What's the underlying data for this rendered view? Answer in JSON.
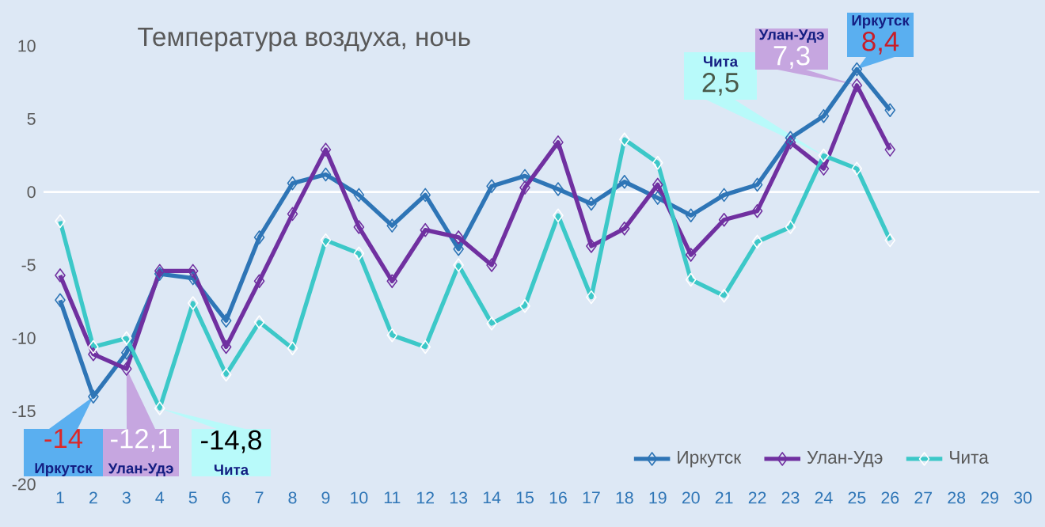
{
  "chart_data": {
    "type": "line",
    "title": "Температура воздуха, ночь",
    "categories": [
      "1",
      "2",
      "3",
      "4",
      "5",
      "6",
      "7",
      "8",
      "9",
      "10",
      "11",
      "12",
      "13",
      "14",
      "15",
      "16",
      "17",
      "18",
      "19",
      "20",
      "21",
      "22",
      "23",
      "24",
      "25",
      "26",
      "27",
      "28",
      "29",
      "30"
    ],
    "series": [
      {
        "name": "Иркутск",
        "color": "#2e75b6",
        "values": [
          -7.4,
          -14,
          -11,
          -5.6,
          -5.9,
          -8.8,
          -3.1,
          0.6,
          1.2,
          -0.2,
          -2.3,
          -0.2,
          -3.9,
          0.4,
          1.1,
          0.2,
          -0.8,
          0.7,
          -0.4,
          -1.6,
          -0.2,
          0.5,
          3.7,
          5.2,
          8.4,
          5.6,
          null,
          null,
          null,
          null
        ]
      },
      {
        "name": "Улан-Удэ",
        "color": "#7030a0",
        "values": [
          -5.7,
          -11.1,
          -12.1,
          -5.4,
          -5.4,
          -10.6,
          -6.1,
          -1.5,
          2.9,
          -2.4,
          -6.1,
          -2.6,
          -3.1,
          -5.0,
          0.3,
          3.4,
          -3.7,
          -2.5,
          0.5,
          -4.3,
          -1.9,
          -1.3,
          3.4,
          1.6,
          7.3,
          2.9,
          null,
          null,
          null,
          null
        ]
      },
      {
        "name": "Чита",
        "color": "#3cc8c8",
        "values": [
          -2.0,
          -10.6,
          -10.0,
          -14.8,
          -7.6,
          -12.5,
          -8.9,
          -10.7,
          -3.3,
          -4.2,
          -9.8,
          -10.6,
          -5.0,
          -9.0,
          -7.8,
          -1.6,
          -7.2,
          3.6,
          2.0,
          -6.0,
          -7.1,
          -3.4,
          -2.4,
          2.5,
          1.6,
          -3.3,
          null,
          null,
          null,
          null
        ]
      }
    ],
    "ylim": [
      -20,
      10
    ],
    "yticks": [
      -20,
      -15,
      -10,
      -5,
      0,
      5,
      10
    ],
    "ref_lines": [
      {
        "axis": "y",
        "value": 0,
        "color": "#ffffff"
      }
    ],
    "grid": false,
    "legend": "bottom right",
    "marker": "diamond",
    "line_style": "solid",
    "annotations": [
      {
        "text": "-14",
        "x": "2",
        "y": -14
      },
      "Иркутск",
      {
        "text": "-12,1",
        "x": "3",
        "y": -12.1
      },
      "Улан-Удэ",
      {
        "text": "-14,8",
        "x": "4",
        "y": -14.8
      },
      "Чита",
      {
        "text": "2,5",
        "x": "24",
        "y": 2.5
      },
      "Чита",
      {
        "text": "7,3",
        "x": "25",
        "y": 7.3
      },
      "Улан-Удэ",
      {
        "text": "8,4",
        "x": "25",
        "y": 8.4
      },
      "Иркутск"
    ]
  }
}
